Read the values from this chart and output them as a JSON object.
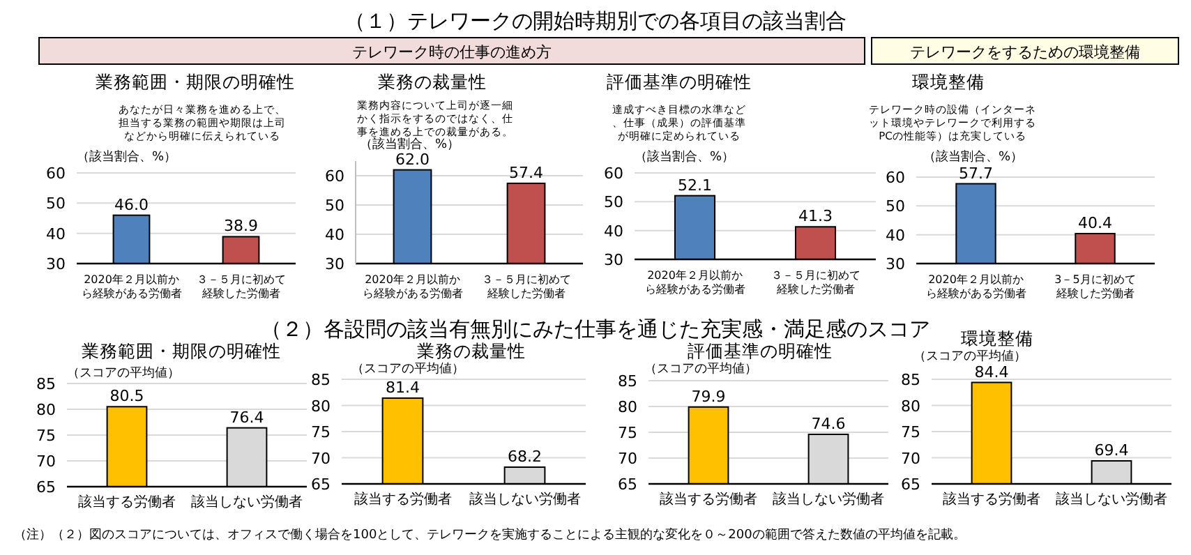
{
  "chart_data": [
    {
      "type": "bar",
      "title": "業務範囲・期限の明確性",
      "ylabel": "（該当割合、%）",
      "annotations": [
        "（１）テレワークの開始時期別での各項目の該当割合",
        "テレワーク時の仕事の進め方",
        "あなたが日々業務を進める上で、担当する業務の範囲や期限は上司などから明確に伝えられている"
      ],
      "categories": [
        "2020年２月以前から経験がある労働者",
        "３－５月に初めて経験した労働者"
      ],
      "values": [
        46.0,
        38.9
      ],
      "value_labels": [
        "46.0",
        "38.9"
      ],
      "colors": [
        "#4f81bd",
        "#c0504d"
      ],
      "ylim": [
        30,
        60
      ],
      "yticks": [
        30,
        40,
        50,
        60
      ],
      "grid": "y"
    },
    {
      "type": "bar",
      "title": "業務の裁量性",
      "ylabel": "（該当割合、%）",
      "annotations": [
        "業務内容について上司が逐一細かく指示をするのではなく、仕事を進める上での裁量がある。"
      ],
      "categories": [
        "2020年２月以前から経験がある労働者",
        "３－５月に初めて経験した労働者"
      ],
      "values": [
        62.0,
        57.4
      ],
      "value_labels": [
        "62.0",
        "57.4"
      ],
      "colors": [
        "#4f81bd",
        "#c0504d"
      ],
      "ylim": [
        30,
        65
      ],
      "yticks": [
        30,
        40,
        50,
        60
      ],
      "grid": "y"
    },
    {
      "type": "bar",
      "title": "評価基準の明確性",
      "ylabel": "（該当割合、%）",
      "annotations": [
        "達成すべき目標の水準など、仕事（成果）の評価基準が明確に定められている"
      ],
      "categories": [
        "2020年２月以前から経験がある労働者",
        "３－５月に初めて経験した労働者"
      ],
      "values": [
        52.1,
        41.3
      ],
      "value_labels": [
        "52.1",
        "41.3"
      ],
      "colors": [
        "#4f81bd",
        "#c0504d"
      ],
      "ylim": [
        30,
        60
      ],
      "yticks": [
        30,
        40,
        50,
        60
      ],
      "grid": "y"
    },
    {
      "type": "bar",
      "title": "環境整備",
      "ylabel": "（該当割合、%）",
      "annotations": [
        "テレワークをするための環境整備",
        "テレワーク時の設備（インターネット環境やテレワークで利用するPCの性能等）は充実している"
      ],
      "categories": [
        "2020年２月以前から経験がある労働者",
        "3－5月に初めて経験した労働者"
      ],
      "values": [
        57.7,
        40.4
      ],
      "value_labels": [
        "57.7",
        "40.4"
      ],
      "colors": [
        "#4f81bd",
        "#c0504d"
      ],
      "ylim": [
        30,
        60
      ],
      "yticks": [
        30,
        40,
        50,
        60
      ],
      "grid": "y"
    },
    {
      "type": "bar",
      "title": "業務範囲・期限の明確性",
      "ylabel": "（スコアの平均値）",
      "annotations": [
        "（２）各設問の該当有無別にみた仕事を通じた充実感・満足感のスコア",
        "（注）（２）図のスコアについては、オフィスで働く場合を100として、テレワークを実施することによる主観的な変化を０～200の範囲で答えた数値の平均値を記載。"
      ],
      "categories": [
        "該当する労働者",
        "該当しない労働者"
      ],
      "values": [
        80.5,
        76.4
      ],
      "value_labels": [
        "80.5",
        "76.4"
      ],
      "colors": [
        "#ffc000",
        "#d9d9d9"
      ],
      "ylim": [
        65,
        85
      ],
      "yticks": [
        65,
        70,
        75,
        80,
        85
      ],
      "grid": "y"
    },
    {
      "type": "bar",
      "title": "業務の裁量性",
      "ylabel": "（スコアの平均値）",
      "categories": [
        "該当する労働者",
        "該当しない労働者"
      ],
      "values": [
        81.4,
        68.2
      ],
      "value_labels": [
        "81.4",
        "68.2"
      ],
      "colors": [
        "#ffc000",
        "#d9d9d9"
      ],
      "ylim": [
        65,
        85
      ],
      "yticks": [
        65,
        70,
        75,
        80,
        85
      ],
      "grid": "y"
    },
    {
      "type": "bar",
      "title": "評価基準の明確性",
      "ylabel": "（スコアの平均値）",
      "categories": [
        "該当する労働者",
        "該当しない労働者"
      ],
      "values": [
        79.9,
        74.6
      ],
      "value_labels": [
        "79.9",
        "74.6"
      ],
      "colors": [
        "#ffc000",
        "#d9d9d9"
      ],
      "ylim": [
        65,
        85
      ],
      "yticks": [
        65,
        70,
        75,
        80,
        85
      ],
      "grid": "y"
    },
    {
      "type": "bar",
      "title": "環境整備",
      "ylabel": "（スコアの平均値）",
      "categories": [
        "該当する労働者",
        "該当しない労働者"
      ],
      "values": [
        84.4,
        69.4
      ],
      "value_labels": [
        "84.4",
        "69.4"
      ],
      "colors": [
        "#ffc000",
        "#d9d9d9"
      ],
      "ylim": [
        65,
        85
      ],
      "yticks": [
        65,
        70,
        75,
        80,
        85
      ],
      "grid": "y"
    }
  ]
}
